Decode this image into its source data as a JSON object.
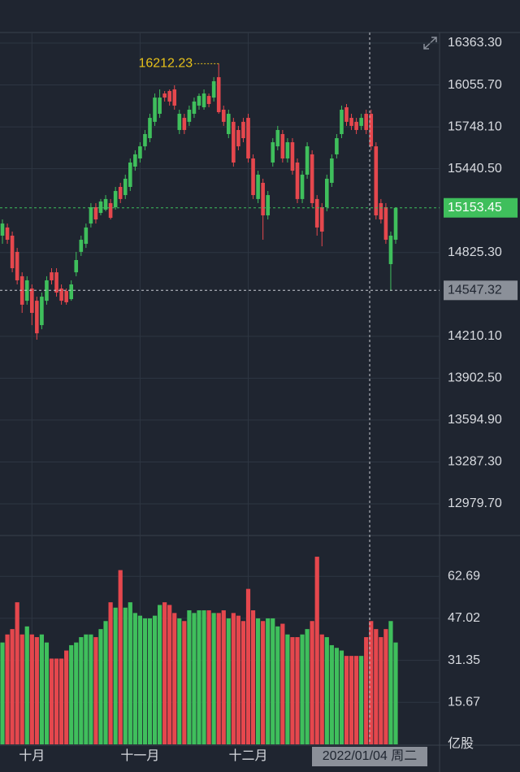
{
  "chart_data": {
    "type": "candlestick",
    "categories": [
      null,
      null,
      null,
      null,
      null,
      null,
      "十月",
      null,
      null,
      null,
      null,
      null,
      null,
      null,
      null,
      null,
      null,
      null,
      null,
      null,
      null,
      null,
      null,
      null,
      null,
      null,
      null,
      null,
      "十一月",
      null,
      null,
      null,
      null,
      null,
      null,
      null,
      null,
      null,
      null,
      null,
      null,
      null,
      null,
      null,
      null,
      null,
      null,
      null,
      null,
      null,
      "十二月",
      null,
      null,
      null,
      null,
      null,
      null,
      null,
      null,
      null,
      null,
      null,
      null,
      null,
      null,
      null,
      null,
      null,
      null,
      null,
      null,
      null,
      null,
      null,
      null,
      null,
      null,
      null,
      null,
      null,
      null
    ],
    "open": [
      14949,
      15009,
      14949,
      14830,
      14651,
      14471,
      14561,
      14471,
      14292,
      14471,
      14680,
      14680,
      14561,
      14543,
      14483,
      14680,
      14830,
      14889,
      15038,
      15158,
      15116,
      15140,
      15188,
      15158,
      15307,
      15247,
      15307,
      15456,
      15516,
      15605,
      15665,
      15785,
      15844,
      15993,
      16011,
      16023,
      15725,
      15814,
      15785,
      15844,
      15904,
      15892,
      15975,
      15963,
      16113,
      15874,
      15695,
      15785,
      15725,
      15785,
      15814,
      15516,
      15218,
      15337,
      15098,
      15486,
      15605,
      15695,
      15516,
      15635,
      15486,
      15218,
      15397,
      15546,
      15218,
      15158,
      15158,
      15337,
      15546,
      15695,
      15892,
      15814,
      15785,
      15755,
      15844,
      15844,
      15605,
      15188,
      15158,
      14740,
      14919
    ],
    "high": [
      15068,
      15038,
      14979,
      14859,
      14680,
      14651,
      14591,
      14501,
      14531,
      14651,
      14710,
      14710,
      14591,
      14561,
      14621,
      14830,
      14949,
      15038,
      15188,
      15188,
      15218,
      15247,
      15218,
      15307,
      15337,
      15397,
      15516,
      15576,
      15635,
      15725,
      15844,
      15993,
      16023,
      16011,
      16023,
      16053,
      15874,
      15844,
      15904,
      15963,
      15993,
      16023,
      15993,
      16113,
      16212.23,
      15904,
      15874,
      15814,
      15755,
      15814,
      15844,
      15546,
      15426,
      15367,
      15277,
      15665,
      15755,
      15725,
      15665,
      15665,
      15516,
      15426,
      15635,
      15576,
      15247,
      15188,
      15397,
      15546,
      15695,
      15904,
      15916,
      15844,
      15814,
      15844,
      15874,
      15874,
      15635,
      15218,
      15188,
      14979,
      15158
    ],
    "low": [
      14889,
      14889,
      14680,
      14591,
      14382,
      14442,
      14292,
      14185,
      14262,
      14442,
      14591,
      14501,
      14442,
      14442,
      14471,
      14651,
      14800,
      14859,
      15009,
      15038,
      15098,
      15128,
      15068,
      15140,
      15188,
      15218,
      15277,
      15426,
      15486,
      15576,
      15635,
      15755,
      15814,
      15934,
      15904,
      15874,
      15695,
      15695,
      15755,
      15814,
      15874,
      15874,
      15892,
      15934,
      15844,
      15755,
      15665,
      15456,
      15576,
      15635,
      15486,
      15218,
      15188,
      14919,
      15068,
      15456,
      15576,
      15486,
      15486,
      15397,
      15188,
      15188,
      15367,
      15158,
      14949,
      14871,
      15128,
      15307,
      15516,
      15665,
      15755,
      15725,
      15695,
      15725,
      15695,
      15576,
      15068,
      15038,
      14889,
      14543,
      14889
    ],
    "close": [
      15038,
      14919,
      14710,
      14621,
      14442,
      14621,
      14382,
      14232,
      14501,
      14621,
      14621,
      14531,
      14471,
      14460,
      14591,
      14770,
      14919,
      15009,
      15158,
      15068,
      15200,
      15218,
      15080,
      15277,
      15218,
      15367,
      15486,
      15546,
      15605,
      15695,
      15814,
      15963,
      15963,
      15963,
      15934,
      15904,
      15844,
      15725,
      15874,
      15934,
      15975,
      15993,
      15916,
      16083,
      15856,
      15785,
      15844,
      15486,
      15605,
      15665,
      15516,
      15247,
      15397,
      15098,
      15247,
      15635,
      15725,
      15516,
      15635,
      15426,
      15218,
      15397,
      15605,
      15188,
      15009,
      14979,
      15367,
      15516,
      15665,
      15874,
      15785,
      15755,
      15725,
      15814,
      15725,
      15605,
      15098,
      15068,
      14919,
      14949,
      15153.45
    ],
    "volume": [
      38,
      41,
      43,
      53,
      41,
      44,
      41,
      40,
      41,
      38,
      32,
      32,
      32,
      35,
      37,
      38,
      40,
      41,
      41,
      40,
      43,
      46,
      53,
      51,
      65,
      51,
      53,
      49,
      48,
      47,
      47,
      48,
      52,
      53,
      52,
      49,
      47,
      46,
      50,
      49,
      50,
      50,
      50,
      49,
      49,
      50,
      47,
      49,
      48,
      46,
      58,
      50,
      47,
      46,
      47,
      47,
      44,
      45,
      41,
      40,
      40,
      41,
      43,
      46,
      70,
      41,
      40,
      37,
      36,
      35,
      33,
      33,
      33,
      33,
      40,
      46,
      43,
      40,
      43,
      46,
      38
    ],
    "up_color": "#3fbf5c",
    "down_color": "#e5474d",
    "ylim": [
      12752.9,
      16440.9
    ],
    "yticks": [
      {
        "value": 16363.3,
        "label": "16363.30"
      },
      {
        "value": 16055.7,
        "label": "16055.70"
      },
      {
        "value": 15748.1,
        "label": "15748.10"
      },
      {
        "value": 15440.5,
        "label": "15440.50"
      },
      {
        "value": 14825.3,
        "label": "14825.30"
      },
      {
        "value": 14210.1,
        "label": "14210.10"
      },
      {
        "value": 13902.5,
        "label": "13902.50"
      },
      {
        "value": 13594.9,
        "label": "13594.90"
      },
      {
        "value": 13287.3,
        "label": "13287.30"
      },
      {
        "value": 12979.7,
        "label": "12979.70"
      }
    ],
    "volume_ylim": [
      0,
      77.6
    ],
    "volume_yticks": [
      62.69,
      47.02,
      31.35,
      15.67,
      {
        "value": 0,
        "label": "亿股"
      }
    ],
    "grid": true,
    "crosshair": {
      "price": 14547.32,
      "date": "2022/01/04 周二"
    }
  }
}
